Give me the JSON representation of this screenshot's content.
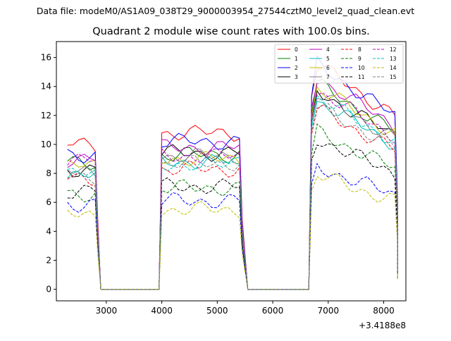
{
  "chart_data": {
    "type": "line",
    "suptitle": "Data file: modeM0/AS1A09_038T29_9000003954_27544cztM0_level2_quad_clean.evt",
    "title": "Quadrant 2 module wise count rates with 100.0s bins.",
    "xlabel": "",
    "ylabel": "",
    "x_offset_label": "+3.4188e8",
    "xlim": [
      2100,
      8400
    ],
    "ylim": [
      -0.8,
      17.1
    ],
    "x_ticks": [
      3000,
      4000,
      5000,
      6000,
      7000,
      8000
    ],
    "y_ticks": [
      0,
      2,
      4,
      6,
      8,
      10,
      12,
      14,
      16
    ],
    "grid": false,
    "legend_position": "top-right",
    "segments": [
      {
        "x_start": 2300,
        "x_end": 2800,
        "drop_x": 2850,
        "zero_x": 2900
      },
      {
        "x_start": 4000,
        "x_end": 5400,
        "drop_x": 5450,
        "zero_x": 5550
      },
      {
        "x_start": 6700,
        "x_end": 8200,
        "drop_x": 8250,
        "zero_x": null
      }
    ],
    "zero_gaps": [
      [
        2900,
        3950
      ],
      [
        5550,
        6650
      ]
    ],
    "series": [
      {
        "name": "0",
        "color": "#ff0000",
        "dashed": false,
        "levels": [
          10.0,
          10.8,
          13.6
        ]
      },
      {
        "name": "1",
        "color": "#008000",
        "dashed": false,
        "levels": [
          8.8,
          9.3,
          12.4
        ]
      },
      {
        "name": "2",
        "color": "#0000ff",
        "dashed": false,
        "levels": [
          9.3,
          10.2,
          13.6
        ]
      },
      {
        "name": "3",
        "color": "#000000",
        "dashed": false,
        "levels": [
          8.3,
          9.4,
          12.0
        ]
      },
      {
        "name": "4",
        "color": "#bf00bf",
        "dashed": false,
        "levels": [
          9.0,
          9.8,
          12.8
        ]
      },
      {
        "name": "5",
        "color": "#00bfbf",
        "dashed": false,
        "levels": [
          7.8,
          8.8,
          11.4
        ]
      },
      {
        "name": "6",
        "color": "#bfbf00",
        "dashed": false,
        "levels": [
          8.5,
          9.0,
          12.2
        ]
      },
      {
        "name": "7",
        "color": "#808080",
        "dashed": false,
        "levels": [
          8.1,
          9.2,
          11.8
        ]
      },
      {
        "name": "8",
        "color": "#ff0000",
        "dashed": true,
        "levels": [
          7.7,
          8.3,
          10.9
        ]
      },
      {
        "name": "9",
        "color": "#008000",
        "dashed": true,
        "levels": [
          6.6,
          7.0,
          9.5
        ]
      },
      {
        "name": "10",
        "color": "#0000ff",
        "dashed": true,
        "levels": [
          5.9,
          6.1,
          7.4
        ]
      },
      {
        "name": "11",
        "color": "#000000",
        "dashed": true,
        "levels": [
          6.8,
          7.1,
          9.1
        ]
      },
      {
        "name": "12",
        "color": "#bf00bf",
        "dashed": true,
        "levels": [
          8.9,
          9.2,
          12.0
        ]
      },
      {
        "name": "13",
        "color": "#00bfbf",
        "dashed": true,
        "levels": [
          7.9,
          8.6,
          11.6
        ]
      },
      {
        "name": "14",
        "color": "#bfbf00",
        "dashed": true,
        "levels": [
          5.1,
          5.5,
          6.9
        ]
      },
      {
        "name": "15",
        "color": "#808080",
        "dashed": true,
        "levels": [
          7.8,
          8.7,
          11.1
        ]
      }
    ]
  }
}
